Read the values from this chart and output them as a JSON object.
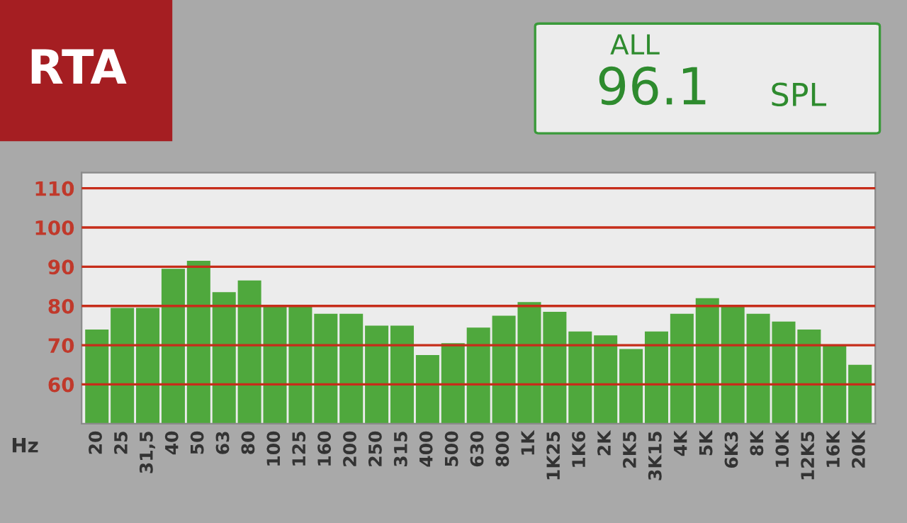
{
  "chart_data": {
    "type": "bar",
    "title": "RTA",
    "xlabel": "Hz",
    "annotations": [
      "ALL",
      "96.1",
      "SPL"
    ],
    "categories": [
      "20",
      "25",
      "31,5",
      "40",
      "50",
      "63",
      "80",
      "100",
      "125",
      "160",
      "200",
      "250",
      "315",
      "400",
      "500",
      "630",
      "800",
      "1K",
      "1K25",
      "1K6",
      "2K",
      "2K5",
      "3K15",
      "4K",
      "5K",
      "6K3",
      "8K",
      "10K",
      "12K5",
      "16K",
      "20K"
    ],
    "values": [
      74,
      79.5,
      79.5,
      89.5,
      91.5,
      83.5,
      86.5,
      80,
      80,
      78,
      78,
      75,
      75,
      67.5,
      70.5,
      74.5,
      77.5,
      81,
      78.5,
      73.5,
      72.5,
      69,
      73.5,
      78,
      82,
      80,
      78,
      76,
      74,
      70,
      65
    ],
    "color": "#4fa83d",
    "ylim": [
      50,
      114
    ],
    "yticks": [
      60,
      70,
      80,
      90,
      100,
      110
    ],
    "grid": "y"
  }
}
